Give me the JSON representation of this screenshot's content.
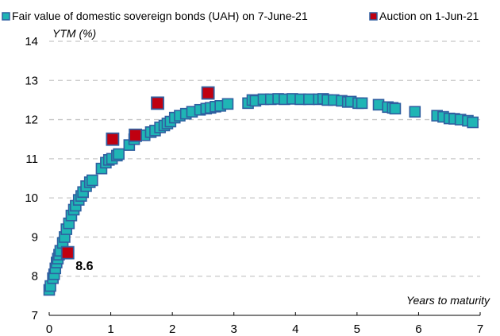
{
  "chart_data": {
    "type": "scatter",
    "ylabel": "YTM (%)",
    "xlabel": "Years to maturity",
    "xlim": [
      0,
      7
    ],
    "ylim": [
      7,
      14
    ],
    "x_ticks": [
      "0",
      "1",
      "2",
      "3",
      "4",
      "5",
      "6",
      "7"
    ],
    "y_ticks": [
      "7",
      "8",
      "9",
      "10",
      "11",
      "12",
      "13",
      "14"
    ],
    "grid": "horizontal dashed",
    "legend_position": "top",
    "colors": {
      "fair_value": "#1fb5b5",
      "fair_value_border": "#2f5fa0",
      "auction": "#c00010",
      "auction_border": "#2f5fa0",
      "grid": "#c8c8c8"
    },
    "series": [
      {
        "name": "Fair value of domestic sovereign bonds (UAH) on 7-June-21",
        "points": [
          [
            0.0,
            7.65
          ],
          [
            0.02,
            7.75
          ],
          [
            0.06,
            7.95
          ],
          [
            0.08,
            8.05
          ],
          [
            0.1,
            8.2
          ],
          [
            0.12,
            8.35
          ],
          [
            0.14,
            8.45
          ],
          [
            0.16,
            8.55
          ],
          [
            0.18,
            8.65
          ],
          [
            0.22,
            8.85
          ],
          [
            0.25,
            9.0
          ],
          [
            0.28,
            9.2
          ],
          [
            0.32,
            9.35
          ],
          [
            0.36,
            9.55
          ],
          [
            0.4,
            9.7
          ],
          [
            0.43,
            9.8
          ],
          [
            0.48,
            9.95
          ],
          [
            0.52,
            10.05
          ],
          [
            0.55,
            10.15
          ],
          [
            0.6,
            10.3
          ],
          [
            0.66,
            10.4
          ],
          [
            0.7,
            10.45
          ],
          [
            0.85,
            10.75
          ],
          [
            0.92,
            10.9
          ],
          [
            0.97,
            10.97
          ],
          [
            1.02,
            11.0
          ],
          [
            1.1,
            11.08
          ],
          [
            1.13,
            11.12
          ],
          [
            1.3,
            11.35
          ],
          [
            1.38,
            11.5
          ],
          [
            1.55,
            11.6
          ],
          [
            1.65,
            11.68
          ],
          [
            1.72,
            11.72
          ],
          [
            1.8,
            11.8
          ],
          [
            1.87,
            11.85
          ],
          [
            1.92,
            11.9
          ],
          [
            1.97,
            11.95
          ],
          [
            2.04,
            12.05
          ],
          [
            2.12,
            12.1
          ],
          [
            2.22,
            12.15
          ],
          [
            2.32,
            12.2
          ],
          [
            2.45,
            12.25
          ],
          [
            2.55,
            12.28
          ],
          [
            2.62,
            12.3
          ],
          [
            2.7,
            12.33
          ],
          [
            2.78,
            12.35
          ],
          [
            2.9,
            12.4
          ],
          [
            3.23,
            12.42
          ],
          [
            3.3,
            12.5
          ],
          [
            3.35,
            12.48
          ],
          [
            3.48,
            12.52
          ],
          [
            3.6,
            12.52
          ],
          [
            3.72,
            12.53
          ],
          [
            3.82,
            12.52
          ],
          [
            3.95,
            12.53
          ],
          [
            4.08,
            12.52
          ],
          [
            4.22,
            12.52
          ],
          [
            4.38,
            12.52
          ],
          [
            4.45,
            12.53
          ],
          [
            4.52,
            12.5
          ],
          [
            4.62,
            12.5
          ],
          [
            4.75,
            12.48
          ],
          [
            4.85,
            12.45
          ],
          [
            4.9,
            12.46
          ],
          [
            5.02,
            12.42
          ],
          [
            5.08,
            12.42
          ],
          [
            5.35,
            12.38
          ],
          [
            5.5,
            12.32
          ],
          [
            5.58,
            12.3
          ],
          [
            5.62,
            12.28
          ],
          [
            5.94,
            12.2
          ],
          [
            6.3,
            12.1
          ],
          [
            6.4,
            12.07
          ],
          [
            6.5,
            12.03
          ],
          [
            6.58,
            12.02
          ],
          [
            6.68,
            12.0
          ],
          [
            6.8,
            11.97
          ],
          [
            6.88,
            11.93
          ]
        ]
      },
      {
        "name": "Auction on 1-Jun-21",
        "points": [
          [
            0.3,
            8.6
          ],
          [
            1.03,
            11.5
          ],
          [
            1.4,
            11.6
          ],
          [
            1.76,
            12.42
          ],
          [
            2.58,
            12.68
          ]
        ]
      }
    ],
    "annotations": [
      {
        "text": "8.6",
        "x": 0.3,
        "y": 8.6
      }
    ]
  }
}
